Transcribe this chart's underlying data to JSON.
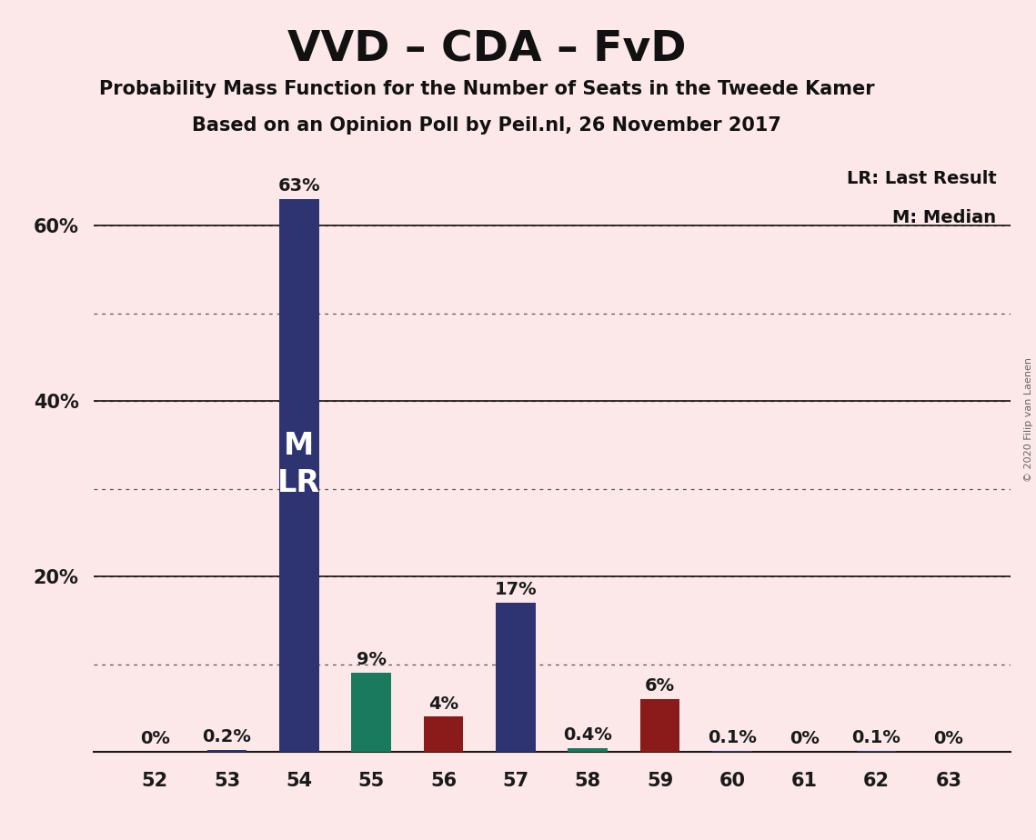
{
  "title": "VVD – CDA – FvD",
  "subtitle1": "Probability Mass Function for the Number of Seats in the Tweede Kamer",
  "subtitle2": "Based on an Opinion Poll by Peil.nl, 26 November 2017",
  "copyright": "© 2020 Filip van Laenen",
  "categories": [
    52,
    53,
    54,
    55,
    56,
    57,
    58,
    59,
    60,
    61,
    62,
    63
  ],
  "values": [
    0.0,
    0.2,
    63.0,
    9.0,
    4.0,
    17.0,
    0.4,
    6.0,
    0.1,
    0.0,
    0.1,
    0.0
  ],
  "bar_colors": [
    "#2e3472",
    "#2e3472",
    "#2e3472",
    "#1a7a5e",
    "#8b1a1a",
    "#2e3472",
    "#1a7a5e",
    "#8b1a1a",
    "#2e3472",
    "#2e3472",
    "#2e3472",
    "#2e3472"
  ],
  "labels": [
    "0%",
    "0.2%",
    "63%",
    "9%",
    "4%",
    "17%",
    "0.4%",
    "6%",
    "0.1%",
    "0%",
    "0.1%",
    "0%"
  ],
  "show_label_min_val": 0.0,
  "median_bar_idx": 2,
  "background_color": "#fce8e8",
  "ylim": [
    0,
    68
  ],
  "ytick_vals": [
    20,
    40,
    60
  ],
  "ytick_labels": [
    "20%",
    "40%",
    "60%"
  ],
  "dotted_lines": [
    10,
    20,
    30,
    40,
    50,
    60
  ],
  "solid_lines": [
    20,
    40,
    60
  ],
  "legend_lr": "LR: Last Result",
  "legend_m": "M: Median",
  "bar_width": 0.55,
  "label_fontsize": 14,
  "tick_fontsize": 15,
  "title_fontsize": 34,
  "subtitle_fontsize": 15,
  "m_lr_fontsize": 24
}
